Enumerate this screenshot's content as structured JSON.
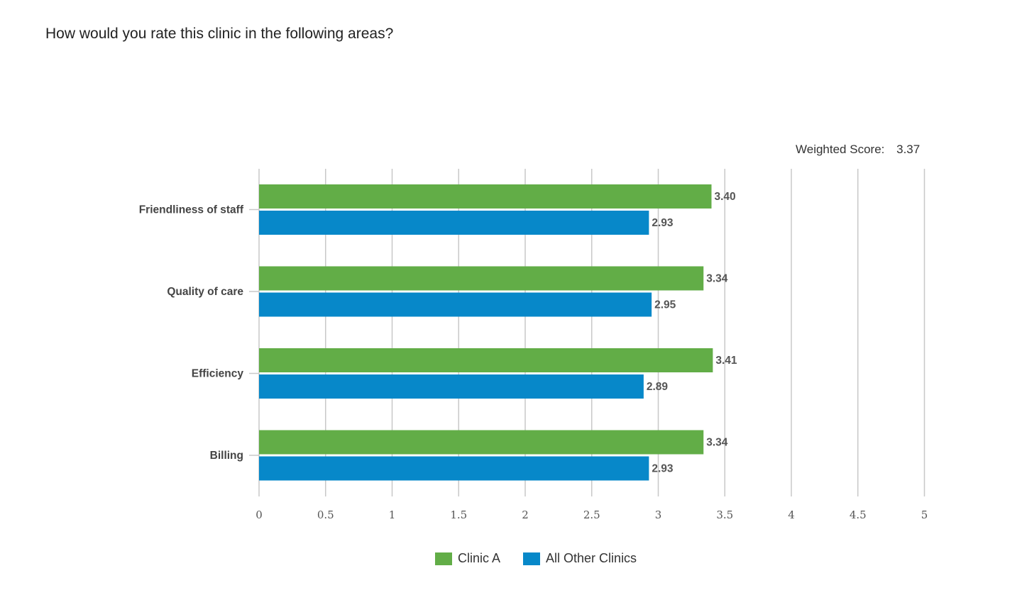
{
  "question": "How would you rate this clinic in the following areas?",
  "weighted_score": {
    "label": "Weighted Score:",
    "value": "3.37"
  },
  "colors": {
    "clinic_a": "#62ad47",
    "all_other": "#0788c9",
    "grid": "#c8c8c8",
    "axis_text": "#555555",
    "category_text": "#444444",
    "value_text": "#555555"
  },
  "chart_data": {
    "type": "bar",
    "orientation": "horizontal",
    "categories": [
      "Friendliness of staff",
      "Quality of care",
      "Efficiency",
      "Billing"
    ],
    "series": [
      {
        "name": "Clinic A",
        "values": [
          3.4,
          3.34,
          3.41,
          3.34
        ],
        "labels": [
          "3.40",
          "3.34",
          "3.41",
          "3.34"
        ]
      },
      {
        "name": "All Other Clinics",
        "values": [
          2.93,
          2.95,
          2.89,
          2.93
        ],
        "labels": [
          "2.93",
          "2.95",
          "2.89",
          "2.93"
        ]
      }
    ],
    "xlim": [
      0,
      5
    ],
    "xticks": [
      "0",
      "0.5",
      "1",
      "1.5",
      "2",
      "2.5",
      "3",
      "3.5",
      "4",
      "4.5",
      "5"
    ],
    "grid": true,
    "legend_position": "bottom"
  }
}
